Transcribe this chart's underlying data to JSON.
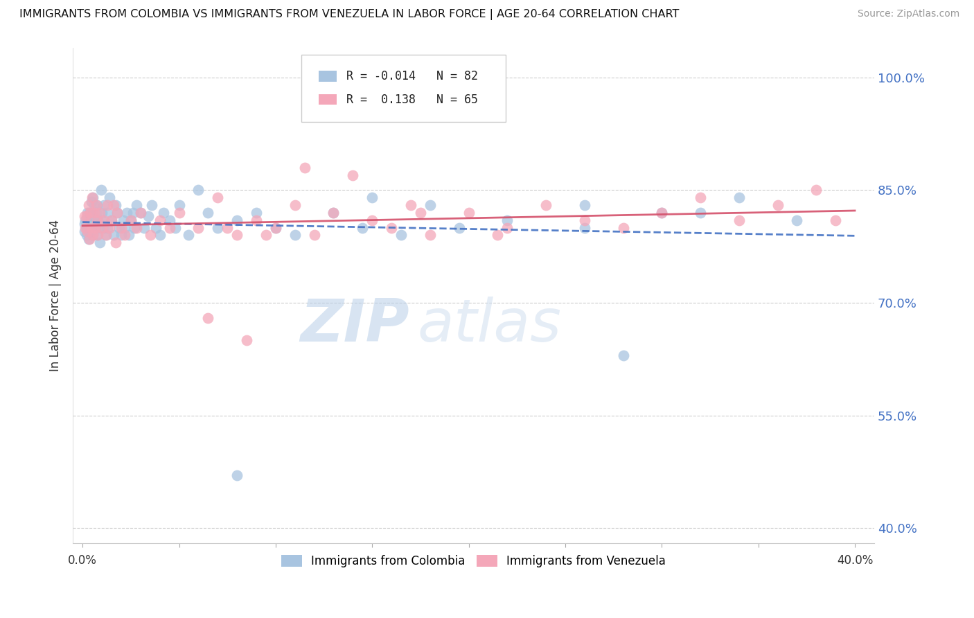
{
  "title": "IMMIGRANTS FROM COLOMBIA VS IMMIGRANTS FROM VENEZUELA IN LABOR FORCE | AGE 20-64 CORRELATION CHART",
  "source": "Source: ZipAtlas.com",
  "ylabel": "In Labor Force | Age 20-64",
  "ymin": 38.0,
  "ymax": 104.0,
  "xmin": -0.5,
  "xmax": 41.0,
  "yticks": [
    40.0,
    55.0,
    70.0,
    85.0,
    100.0
  ],
  "ytick_labels": [
    "40.0%",
    "55.0%",
    "70.0%",
    "85.0%",
    "100.0%"
  ],
  "colombia_color": "#a8c4e0",
  "venezuela_color": "#f4a7b9",
  "colombia_R": "-0.014",
  "colombia_N": "82",
  "venezuela_R": "0.138",
  "venezuela_N": "65",
  "colombia_line_color": "#4472c4",
  "venezuela_line_color": "#d4506a",
  "watermark_zip": "ZIP",
  "watermark_atlas": "atlas",
  "colombia_x": [
    0.1,
    0.1,
    0.15,
    0.2,
    0.2,
    0.25,
    0.3,
    0.3,
    0.35,
    0.35,
    0.4,
    0.4,
    0.45,
    0.5,
    0.5,
    0.55,
    0.55,
    0.6,
    0.6,
    0.65,
    0.7,
    0.75,
    0.75,
    0.8,
    0.85,
    0.9,
    0.95,
    1.0,
    1.0,
    1.1,
    1.1,
    1.2,
    1.3,
    1.3,
    1.4,
    1.5,
    1.6,
    1.7,
    1.8,
    1.9,
    2.0,
    2.1,
    2.2,
    2.3,
    2.4,
    2.5,
    2.6,
    2.7,
    2.8,
    3.0,
    3.2,
    3.4,
    3.6,
    3.8,
    4.0,
    4.2,
    4.5,
    4.8,
    5.0,
    5.5,
    6.0,
    6.5,
    7.0,
    8.0,
    9.0,
    10.0,
    11.0,
    13.0,
    15.0,
    18.0,
    22.0,
    26.0,
    30.0,
    34.0,
    37.0,
    28.0,
    19.5,
    16.5,
    32.0,
    26.0,
    14.5,
    8.0
  ],
  "colombia_y": [
    80.5,
    79.5,
    81.0,
    80.0,
    79.0,
    82.0,
    80.5,
    78.5,
    82.0,
    80.0,
    81.5,
    79.5,
    83.5,
    82.0,
    80.0,
    79.0,
    84.0,
    83.0,
    81.0,
    80.0,
    82.0,
    79.0,
    83.0,
    81.0,
    80.0,
    78.0,
    85.0,
    82.0,
    81.0,
    80.0,
    83.0,
    79.0,
    82.0,
    80.0,
    84.0,
    81.0,
    79.0,
    83.0,
    82.0,
    80.0,
    79.0,
    81.0,
    80.0,
    82.0,
    79.0,
    81.0,
    82.0,
    80.0,
    83.0,
    82.0,
    80.0,
    81.5,
    83.0,
    80.0,
    79.0,
    82.0,
    81.0,
    80.0,
    83.0,
    79.0,
    85.0,
    82.0,
    80.0,
    81.0,
    82.0,
    80.0,
    79.0,
    82.0,
    84.0,
    83.0,
    81.0,
    80.0,
    82.0,
    84.0,
    81.0,
    63.0,
    80.0,
    79.0,
    82.0,
    83.0,
    80.0,
    47.0
  ],
  "venezuela_x": [
    0.1,
    0.15,
    0.2,
    0.25,
    0.3,
    0.35,
    0.4,
    0.45,
    0.5,
    0.55,
    0.6,
    0.65,
    0.7,
    0.75,
    0.8,
    0.9,
    1.0,
    1.1,
    1.2,
    1.3,
    1.4,
    1.5,
    1.6,
    1.7,
    1.8,
    2.0,
    2.2,
    2.5,
    2.8,
    3.0,
    3.5,
    4.0,
    4.5,
    5.0,
    6.0,
    7.0,
    8.0,
    9.0,
    10.0,
    11.0,
    12.0,
    13.0,
    14.0,
    15.0,
    16.0,
    17.0,
    18.0,
    20.0,
    22.0,
    24.0,
    26.0,
    28.0,
    30.0,
    32.0,
    34.0,
    36.0,
    38.0,
    39.0,
    6.5,
    7.5,
    8.5,
    9.5,
    11.5,
    17.5,
    21.5
  ],
  "venezuela_y": [
    81.5,
    80.0,
    81.5,
    79.5,
    83.0,
    78.5,
    82.0,
    80.0,
    84.0,
    79.0,
    82.0,
    80.0,
    83.0,
    81.0,
    79.0,
    82.0,
    80.0,
    81.0,
    79.0,
    83.0,
    80.0,
    81.0,
    83.0,
    78.0,
    82.0,
    80.0,
    79.0,
    81.0,
    80.0,
    82.0,
    79.0,
    81.0,
    80.0,
    82.0,
    80.0,
    84.0,
    79.0,
    81.0,
    80.0,
    83.0,
    79.0,
    82.0,
    87.0,
    81.0,
    80.0,
    83.0,
    79.0,
    82.0,
    80.0,
    83.0,
    81.0,
    80.0,
    82.0,
    84.0,
    81.0,
    83.0,
    85.0,
    81.0,
    68.0,
    80.0,
    65.0,
    79.0,
    88.0,
    82.0,
    79.0
  ]
}
